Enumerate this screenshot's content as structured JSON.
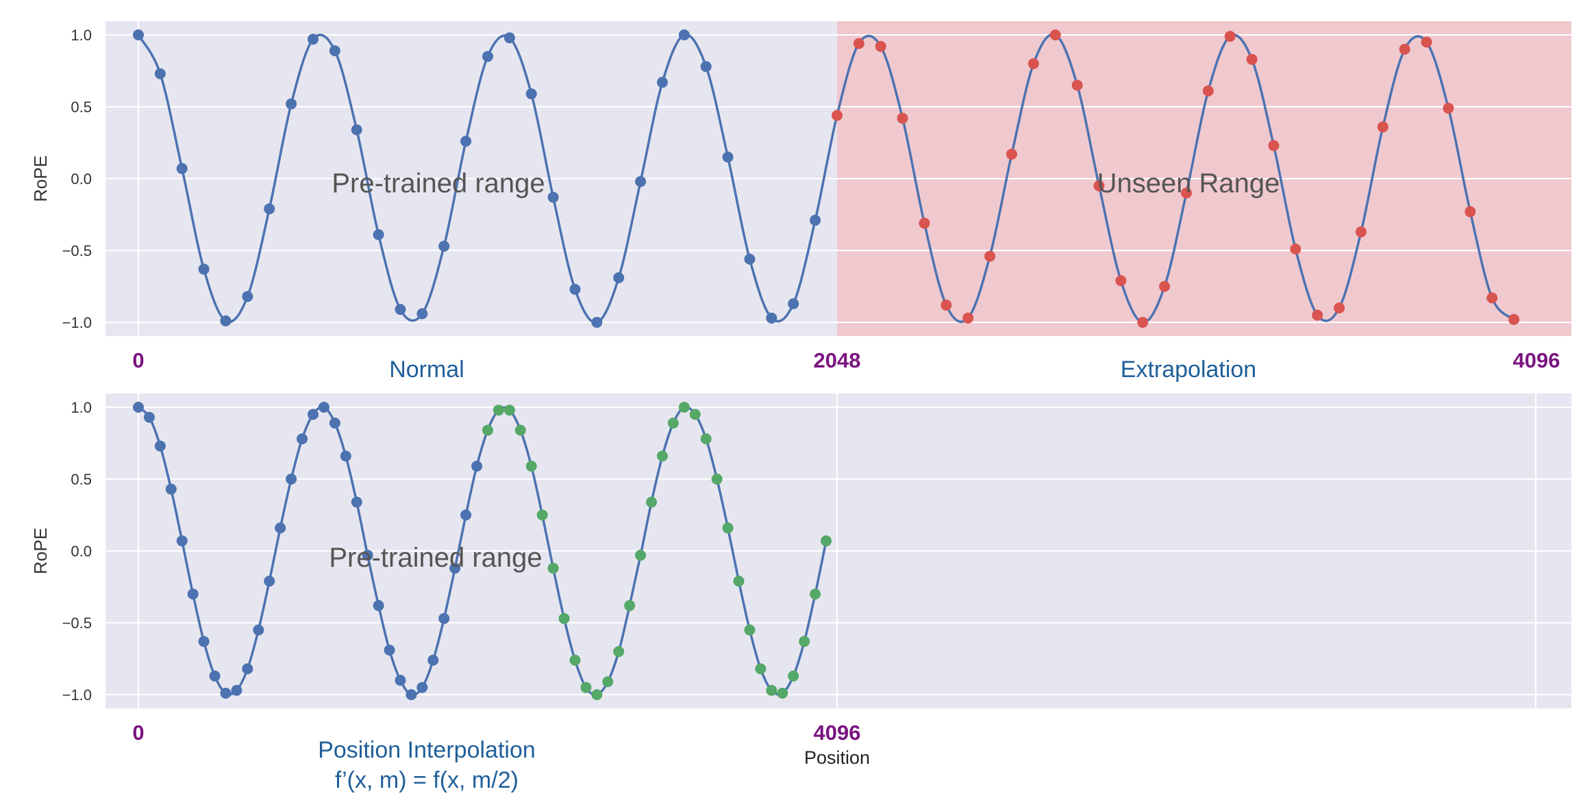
{
  "chart_data": [
    {
      "type": "line",
      "panel": "Extrapolation",
      "ylabel": "RoPE",
      "ylim": [
        -1.1,
        1.1
      ],
      "yticks": [
        "1.0",
        "0.5",
        "0.0",
        "−0.5",
        "−1.0"
      ],
      "grid": true,
      "curve": "cosine with period ≈ 512 positions",
      "x_range": [
        0,
        4096
      ],
      "regions": [
        {
          "label": "Pre-trained range",
          "x": [
            0,
            2048
          ]
        },
        {
          "label": "Unseen Range",
          "x": [
            2048,
            4096
          ],
          "color": "#f0c9cf"
        }
      ],
      "position_labels": [
        "0",
        "2048",
        "4096"
      ],
      "captions": [
        "Normal",
        "Extrapolation"
      ],
      "series": [
        {
          "color": "#4c72b0",
          "points": [
            [
              0,
              1.0
            ],
            [
              64,
              0.73
            ],
            [
              128,
              0.07
            ],
            [
              192,
              -0.63
            ],
            [
              256,
              -0.99
            ],
            [
              320,
              -0.82
            ],
            [
              384,
              -0.21
            ],
            [
              448,
              0.52
            ],
            [
              512,
              0.97
            ],
            [
              576,
              0.89
            ],
            [
              640,
              0.34
            ],
            [
              704,
              -0.39
            ],
            [
              768,
              -0.91
            ],
            [
              832,
              -0.94
            ],
            [
              896,
              -0.47
            ],
            [
              960,
              0.26
            ],
            [
              1024,
              0.85
            ],
            [
              1088,
              0.98
            ],
            [
              1152,
              0.59
            ],
            [
              1216,
              -0.13
            ],
            [
              1280,
              -0.77
            ],
            [
              1344,
              -1.0
            ],
            [
              1408,
              -0.69
            ],
            [
              1472,
              -0.02
            ],
            [
              1536,
              0.67
            ],
            [
              1600,
              1.0
            ],
            [
              1664,
              0.78
            ],
            [
              1728,
              0.15
            ],
            [
              1792,
              -0.56
            ],
            [
              1856,
              -0.97
            ],
            [
              1920,
              -0.87
            ],
            [
              1984,
              -0.29
            ]
          ]
        },
        {
          "color": "#d9534f",
          "points": [
            [
              2048,
              0.44
            ],
            [
              2112,
              0.94
            ],
            [
              2176,
              0.92
            ],
            [
              2240,
              0.42
            ],
            [
              2304,
              -0.31
            ],
            [
              2368,
              -0.88
            ],
            [
              2432,
              -0.97
            ],
            [
              2496,
              -0.54
            ],
            [
              2560,
              0.17
            ],
            [
              2624,
              0.8
            ],
            [
              2688,
              1.0
            ],
            [
              2752,
              0.65
            ],
            [
              2816,
              -0.05
            ],
            [
              2880,
              -0.71
            ],
            [
              2944,
              -1.0
            ],
            [
              3008,
              -0.75
            ],
            [
              3072,
              -0.1
            ],
            [
              3136,
              0.61
            ],
            [
              3200,
              0.99
            ],
            [
              3264,
              0.83
            ],
            [
              3328,
              0.23
            ],
            [
              3392,
              -0.49
            ],
            [
              3456,
              -0.95
            ],
            [
              3520,
              -0.9
            ],
            [
              3584,
              -0.37
            ],
            [
              3648,
              0.36
            ],
            [
              3712,
              0.9
            ],
            [
              3776,
              0.95
            ],
            [
              3840,
              0.49
            ],
            [
              3904,
              -0.23
            ],
            [
              3968,
              -0.83
            ],
            [
              4032,
              -0.98
            ]
          ]
        }
      ]
    },
    {
      "type": "line",
      "panel": "Position Interpolation",
      "ylabel": "RoPE",
      "xlabel": "Position",
      "ylim": [
        -1.1,
        1.1
      ],
      "yticks": [
        "1.0",
        "0.5",
        "0.0",
        "−0.5",
        "−1.0"
      ],
      "grid": true,
      "x_range": [
        0,
        4096
      ],
      "regions": [
        {
          "label": "Pre-trained range",
          "x": [
            0,
            4096
          ]
        }
      ],
      "position_labels": [
        "0",
        "4096"
      ],
      "captions": [
        "Position Interpolation",
        "f’(x, m) = f(x, m/2)"
      ],
      "series": [
        {
          "color": "#4c72b0",
          "points": [
            [
              0,
              1.0
            ],
            [
              32,
              0.93
            ],
            [
              64,
              0.73
            ],
            [
              96,
              0.43
            ],
            [
              128,
              0.07
            ],
            [
              160,
              -0.3
            ],
            [
              192,
              -0.63
            ],
            [
              224,
              -0.87
            ],
            [
              256,
              -0.99
            ],
            [
              288,
              -0.97
            ],
            [
              320,
              -0.82
            ],
            [
              352,
              -0.55
            ],
            [
              384,
              -0.21
            ],
            [
              416,
              0.16
            ],
            [
              448,
              0.5
            ],
            [
              480,
              0.78
            ],
            [
              512,
              0.95
            ],
            [
              544,
              1.0
            ],
            [
              576,
              0.89
            ],
            [
              608,
              0.66
            ],
            [
              640,
              0.34
            ],
            [
              672,
              -0.03
            ],
            [
              704,
              -0.38
            ],
            [
              736,
              -0.69
            ],
            [
              768,
              -0.9
            ],
            [
              800,
              -1.0
            ],
            [
              832,
              -0.95
            ],
            [
              864,
              -0.76
            ],
            [
              896,
              -0.47
            ],
            [
              928,
              -0.12
            ],
            [
              960,
              0.25
            ],
            [
              992,
              0.59
            ]
          ]
        },
        {
          "color": "#55a868",
          "points": [
            [
              1024,
              0.84
            ],
            [
              1056,
              0.98
            ],
            [
              1088,
              0.98
            ],
            [
              1120,
              0.84
            ],
            [
              1152,
              0.59
            ],
            [
              1184,
              0.25
            ],
            [
              1216,
              -0.12
            ],
            [
              1248,
              -0.47
            ],
            [
              1280,
              -0.76
            ],
            [
              1312,
              -0.95
            ],
            [
              1344,
              -1.0
            ],
            [
              1376,
              -0.91
            ],
            [
              1408,
              -0.7
            ],
            [
              1440,
              -0.38
            ],
            [
              1472,
              -0.03
            ],
            [
              1504,
              0.34
            ],
            [
              1536,
              0.66
            ],
            [
              1568,
              0.89
            ],
            [
              1600,
              1.0
            ],
            [
              1632,
              0.95
            ],
            [
              1664,
              0.78
            ],
            [
              1696,
              0.5
            ],
            [
              1728,
              0.16
            ],
            [
              1760,
              -0.21
            ],
            [
              1792,
              -0.55
            ],
            [
              1824,
              -0.82
            ],
            [
              1856,
              -0.97
            ],
            [
              1888,
              -0.99
            ],
            [
              1920,
              -0.87
            ],
            [
              1952,
              -0.63
            ],
            [
              1984,
              -0.3
            ],
            [
              2016,
              0.07
            ]
          ]
        }
      ]
    }
  ],
  "colors": {
    "axes_bg": "#e6e6f0",
    "grid": "#ffffff",
    "line": "#4c72b0",
    "unseen_region": "#f0c9cf",
    "position_label": "#7b1480",
    "caption": "#1f5f9a"
  }
}
